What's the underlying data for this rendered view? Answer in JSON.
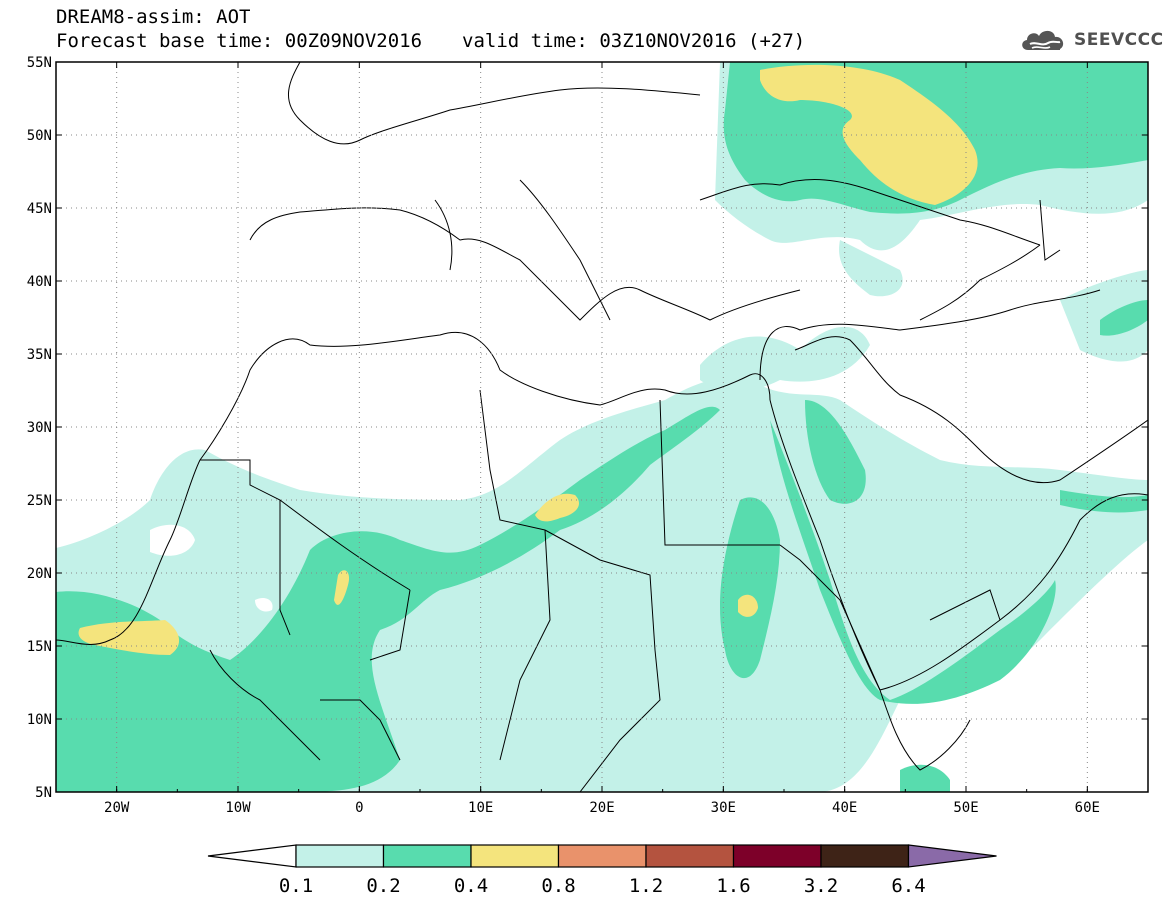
{
  "header": {
    "title": "DREAM8-assim: AOT",
    "base_time": "Forecast base time: 00Z09NOV2016",
    "valid_time": "valid time: 03Z10NOV2016 (+27)"
  },
  "logo": {
    "text": "SEEVCCC",
    "icon": "cloud-icon"
  },
  "map": {
    "lon_range": [
      -25,
      65
    ],
    "lat_range": [
      5,
      55
    ],
    "lat_ticks": [
      "5N",
      "10N",
      "15N",
      "20N",
      "25N",
      "30N",
      "35N",
      "40N",
      "45N",
      "50N",
      "55N"
    ],
    "lon_ticks": [
      "20W",
      "10W",
      "0",
      "10E",
      "20E",
      "30E",
      "40E",
      "50E",
      "60E"
    ],
    "grid": "dotted"
  },
  "colorbar": {
    "labels": [
      "0.1",
      "0.2",
      "0.4",
      "0.8",
      "1.2",
      "1.6",
      "3.2",
      "6.4"
    ],
    "colors": [
      "#ffffff",
      "#c3f1e8",
      "#58dcae",
      "#f4e47d",
      "#e9926b",
      "#b4533f",
      "#7d0029",
      "#3e2317",
      "#8a6aa8"
    ]
  }
}
